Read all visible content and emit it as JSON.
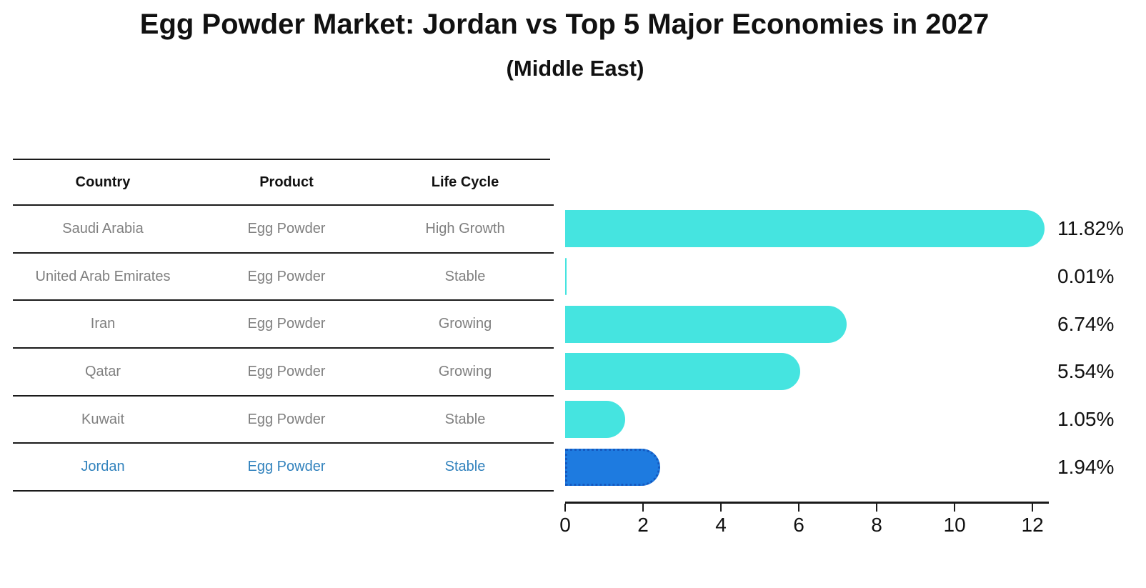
{
  "title": "Egg Powder Market: Jordan vs Top 5 Major Economies in 2027",
  "subtitle": "(Middle East)",
  "table": {
    "headers": {
      "country": "Country",
      "product": "Product",
      "life_cycle": "Life Cycle"
    },
    "rows": [
      {
        "country": "Saudi Arabia",
        "product": "Egg Powder",
        "life_cycle": "High Growth",
        "highlighted": false
      },
      {
        "country": "United Arab Emirates",
        "product": "Egg Powder",
        "life_cycle": "Stable",
        "highlighted": false
      },
      {
        "country": "Iran",
        "product": "Egg Powder",
        "life_cycle": "Growing",
        "highlighted": false
      },
      {
        "country": "Qatar",
        "product": "Egg Powder",
        "life_cycle": "Growing",
        "highlighted": false
      },
      {
        "country": "Kuwait",
        "product": "Egg Powder",
        "life_cycle": "Stable",
        "highlighted": false
      },
      {
        "country": "Jordan",
        "product": "Egg Powder",
        "life_cycle": "Stable",
        "highlighted": true
      }
    ]
  },
  "chart_data": {
    "type": "bar",
    "orientation": "horizontal",
    "title": "Egg Powder Market: Jordan vs Top 5 Major Economies in 2027",
    "subtitle": "(Middle East)",
    "categories": [
      "Saudi Arabia",
      "United Arab Emirates",
      "Iran",
      "Qatar",
      "Kuwait",
      "Jordan"
    ],
    "values": [
      11.82,
      0.01,
      6.74,
      5.54,
      1.05,
      1.94
    ],
    "value_labels": [
      "11.82%",
      "0.01%",
      "6.74%",
      "5.54%",
      "1.05%",
      "1.94%"
    ],
    "unit": "%",
    "x_ticks": [
      0,
      2,
      4,
      6,
      8,
      10,
      12
    ],
    "xlim": [
      0,
      12.42
    ],
    "grid": false,
    "legend": false,
    "highlight_index": 5,
    "bar_color": "#45E4E0",
    "highlight_bar_color": "#1E7BE0",
    "highlight_border_color": "#1559C0"
  },
  "colors": {
    "text": "#111111",
    "muted_text": "#7F7F7F",
    "highlight_text": "#3182BD",
    "rule": "#1A1A1A",
    "background": "#FFFFFF"
  }
}
